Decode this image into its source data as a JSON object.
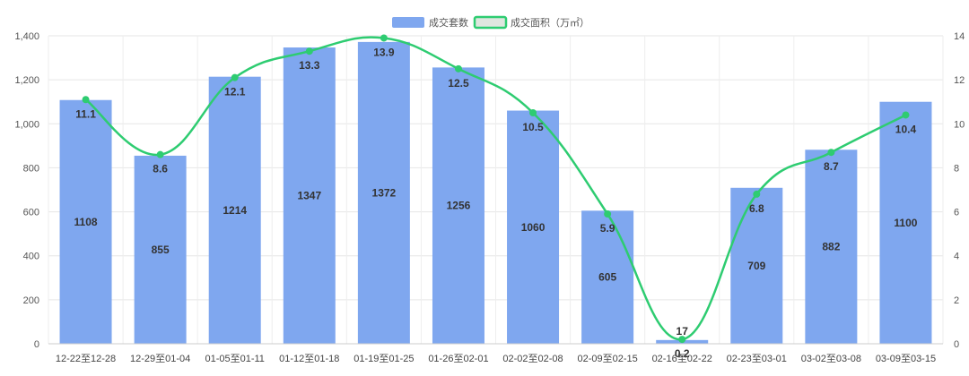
{
  "chart_data": {
    "type": "bar",
    "categories": [
      "12-22至12-28",
      "12-29至01-04",
      "01-05至01-11",
      "01-12至01-18",
      "01-19至01-25",
      "01-26至02-01",
      "02-02至02-08",
      "02-09至02-15",
      "02-16至02-22",
      "02-23至03-01",
      "03-02至03-08",
      "03-09至03-15"
    ],
    "series": [
      {
        "name": "成交套数",
        "type": "bar",
        "axis": "left",
        "color": "#7fa7ef",
        "values": [
          1108,
          855,
          1214,
          1347,
          1372,
          1256,
          1060,
          605,
          17,
          709,
          882,
          1100
        ]
      },
      {
        "name": "成交面积（万㎡）",
        "type": "line",
        "axis": "right",
        "color": "#2ecc71",
        "values": [
          11.1,
          8.6,
          12.1,
          13.3,
          13.9,
          12.5,
          10.5,
          5.9,
          0.2,
          6.8,
          8.7,
          10.4
        ]
      }
    ],
    "y_left": {
      "ylim": [
        0,
        1400
      ],
      "ticks": [
        0,
        200,
        400,
        600,
        800,
        1000,
        1200,
        1400
      ],
      "tick_labels": [
        "0",
        "200",
        "400",
        "600",
        "800",
        "1,000",
        "1,200",
        "1,400"
      ]
    },
    "y_right": {
      "ylim": [
        0,
        14
      ],
      "ticks": [
        0,
        2,
        4,
        6,
        8,
        10,
        12,
        14
      ],
      "tick_labels": [
        "0",
        "2",
        "4",
        "6",
        "8",
        "10",
        "12",
        "14"
      ]
    },
    "title": "",
    "xlabel": "",
    "ylabel": "",
    "grid": true,
    "legend_position": "top-center"
  }
}
